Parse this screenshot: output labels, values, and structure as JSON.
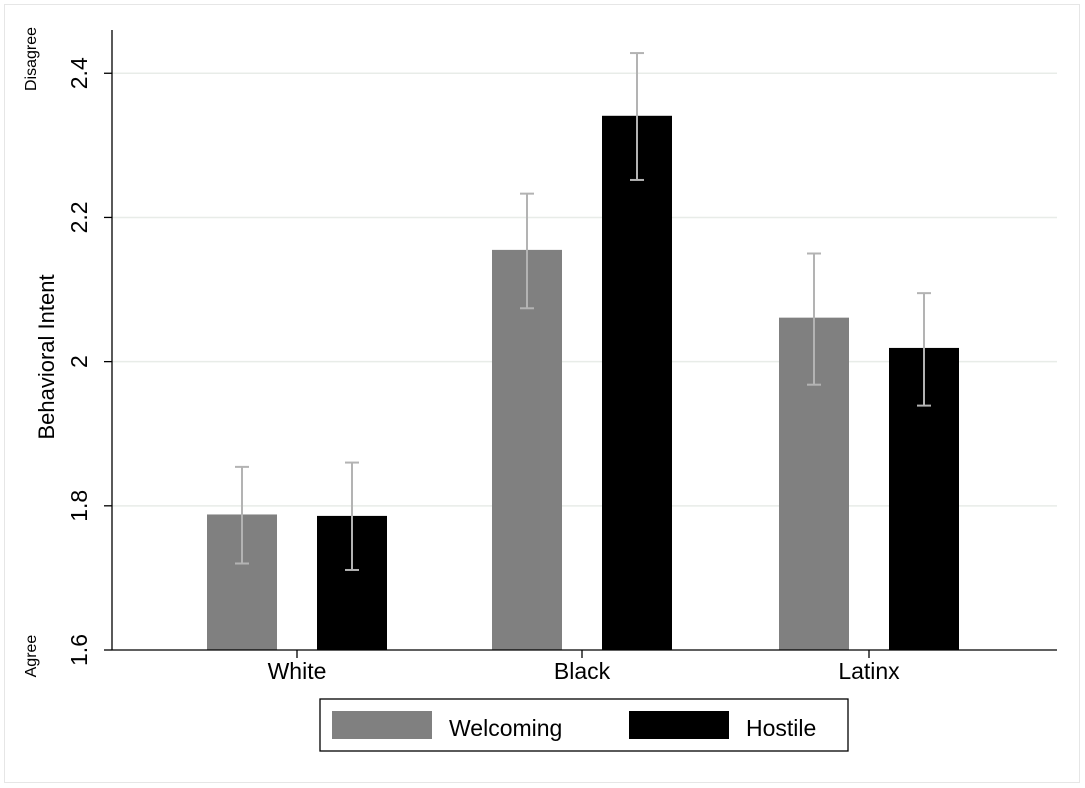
{
  "chart_data": {
    "type": "bar",
    "title": "",
    "xlabel": "",
    "ylabel": "Behavioral Intent",
    "ylim": [
      1.6,
      2.46
    ],
    "yticks": [
      1.6,
      1.8,
      2,
      2.2,
      2.4
    ],
    "ytick_labels": [
      "1.6",
      "1.8",
      "2",
      "2.2",
      "2.4"
    ],
    "y_anchor_top": "Disagree",
    "y_anchor_bottom": "Agree",
    "categories": [
      "White",
      "Black",
      "Latinx"
    ],
    "series": [
      {
        "name": "Welcoming",
        "color": "#808080",
        "values": [
          1.788,
          2.155,
          2.061
        ],
        "ci_low": [
          1.72,
          2.074,
          1.968
        ],
        "ci_high": [
          1.854,
          2.233,
          2.15
        ]
      },
      {
        "name": "Hostile",
        "color": "#000000",
        "values": [
          1.786,
          2.341,
          2.019
        ],
        "ci_low": [
          1.711,
          2.252,
          1.939
        ],
        "ci_high": [
          1.86,
          2.428,
          2.095
        ]
      }
    ],
    "grid": true,
    "legend_position": "bottom-center",
    "errorbar_color": "#b3b3b3"
  }
}
